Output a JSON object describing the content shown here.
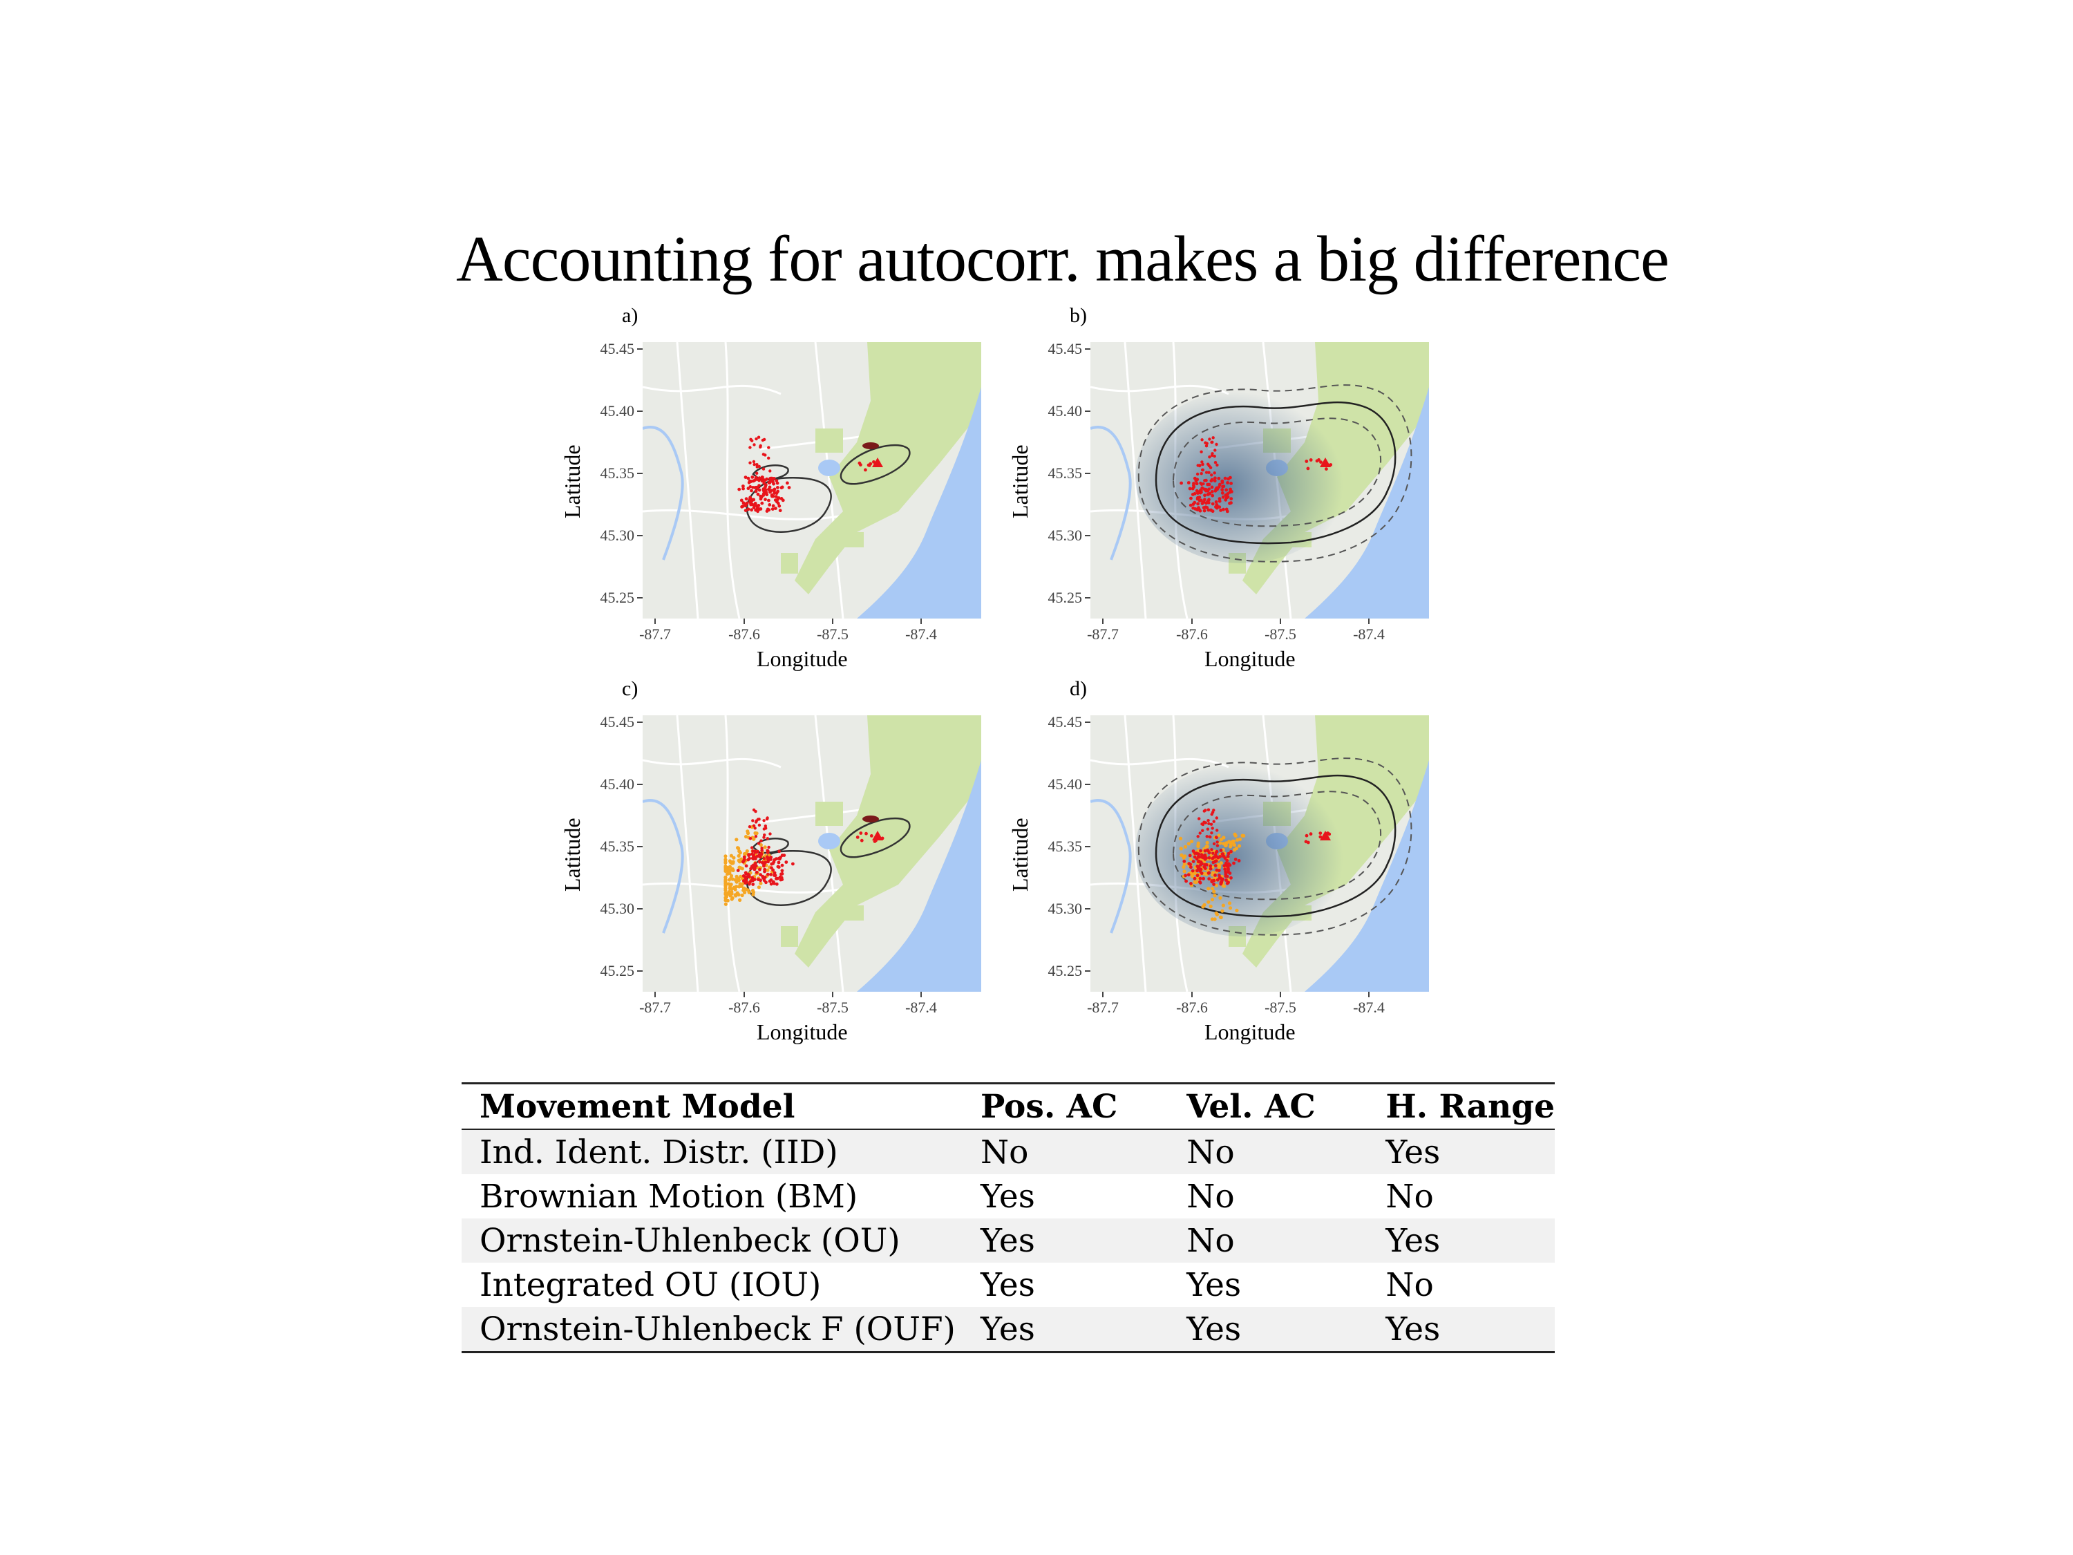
{
  "title": "Accounting for autocorr. makes a big difference",
  "panels": [
    {
      "letter": "a)",
      "xlabel": "Longitude",
      "ylabel": "Latitude",
      "yticks": [
        "45.45",
        "45.40",
        "45.35",
        "45.30",
        "45.25"
      ],
      "xticks": [
        "-87.7",
        "-87.6",
        "-87.5",
        "-87.4"
      ]
    },
    {
      "letter": "b)",
      "xlabel": "Longitude",
      "ylabel": "Latitude",
      "yticks": [
        "45.45",
        "45.40",
        "45.35",
        "45.30",
        "45.25"
      ],
      "xticks": [
        "-87.7",
        "-87.6",
        "-87.5",
        "-87.4"
      ]
    },
    {
      "letter": "c)",
      "xlabel": "Longitude",
      "ylabel": "Latitude",
      "yticks": [
        "45.45",
        "45.40",
        "45.35",
        "45.30",
        "45.25"
      ],
      "xticks": [
        "-87.7",
        "-87.6",
        "-87.5",
        "-87.4"
      ]
    },
    {
      "letter": "d)",
      "xlabel": "Longitude",
      "ylabel": "Latitude",
      "yticks": [
        "45.45",
        "45.40",
        "45.35",
        "45.30",
        "45.25"
      ],
      "xticks": [
        "-87.7",
        "-87.6",
        "-87.5",
        "-87.4"
      ]
    }
  ],
  "colors": {
    "gps_fixes": "#e8141b",
    "simulated_path": "#f5a623",
    "water": "#a9c9f5",
    "forest": "#cfe3a8",
    "land": "#e9ebe6",
    "density": "#3b5f87"
  },
  "table": {
    "headers": [
      "Movement Model",
      "Pos. AC",
      "Vel. AC",
      "H. Range"
    ],
    "rows": [
      [
        "Ind. Ident. Distr. (IID)",
        "No",
        "No",
        "Yes"
      ],
      [
        "Brownian Motion (BM)",
        "Yes",
        "No",
        "No"
      ],
      [
        "Ornstein-Uhlenbeck (OU)",
        "Yes",
        "No",
        "Yes"
      ],
      [
        "Integrated OU (IOU)",
        "Yes",
        "Yes",
        "No"
      ],
      [
        "Ornstein-Uhlenbeck F (OUF)",
        "Yes",
        "Yes",
        "Yes"
      ]
    ]
  }
}
